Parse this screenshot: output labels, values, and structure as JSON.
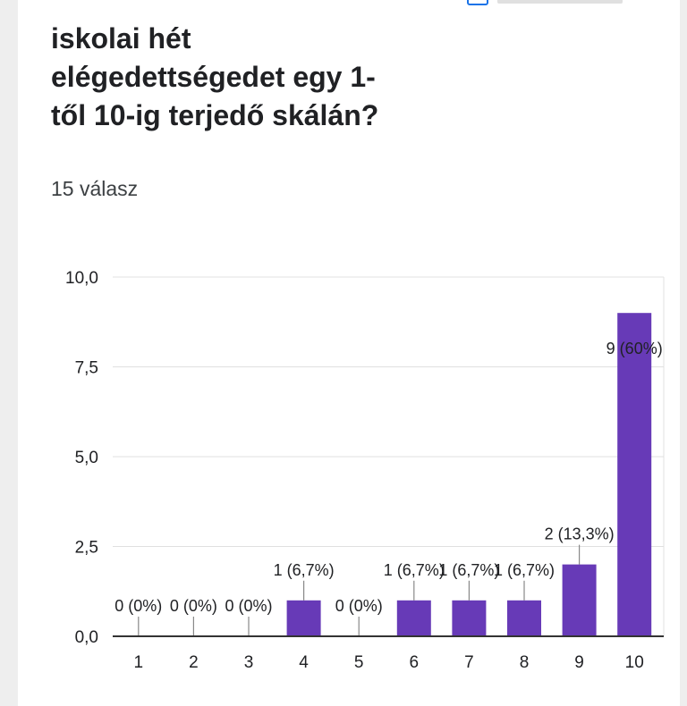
{
  "question": {
    "title": "iskolai hét\nelégedettségedet egy 1-\ntől 10-ig terjedő skálán?",
    "response_count": "15 válasz"
  },
  "colors": {
    "bar": "#673ab7",
    "grid": "#e0e0e0",
    "axis": "#333333",
    "text": "#202124"
  },
  "chart_data": {
    "type": "bar",
    "categories": [
      "1",
      "2",
      "3",
      "4",
      "5",
      "6",
      "7",
      "8",
      "9",
      "10"
    ],
    "values": [
      0,
      0,
      0,
      1,
      0,
      1,
      1,
      1,
      2,
      9
    ],
    "data_labels": [
      "0 (0%)",
      "0 (0%)",
      "0 (0%)",
      "1 (6,7%)",
      "0 (0%)",
      "1 (6,7%)",
      "1 (6,7%)",
      "1 (6,7%)",
      "2 (13,3%)",
      "9 (60%)"
    ],
    "y_ticks": [
      "0,0",
      "2,5",
      "5,0",
      "7,5",
      "10,0"
    ],
    "y_tick_values": [
      0,
      2.5,
      5,
      7.5,
      10
    ],
    "ylim": [
      0,
      10
    ],
    "title": "",
    "xlabel": "",
    "ylabel": "",
    "grid": true
  }
}
